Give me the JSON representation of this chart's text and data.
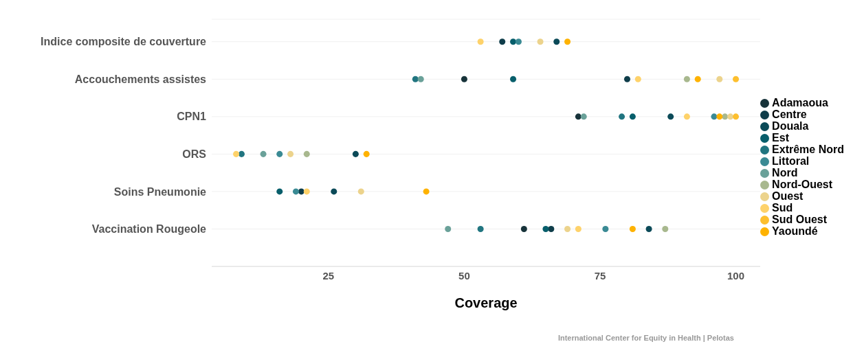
{
  "chart_data": {
    "type": "scatter",
    "xlabel": "Coverage",
    "categories": [
      "Indice composite de couverture",
      "Accouchements assistes",
      "CPN1",
      "ORS",
      "Soins Pneumonie",
      "Vaccination Rougeole"
    ],
    "orientation": "horizontal",
    "xlim": [
      3.5,
      104.5
    ],
    "xticks": [
      25,
      50,
      75,
      100
    ],
    "grid": "y",
    "legend": "right",
    "marker": "circle",
    "annotations": [
      "International Center for Equity in Health | Pelotas"
    ],
    "series": [
      {
        "name": "Adamaoua",
        "color": "#17333a",
        "values": [
          null,
          50,
          71,
          null,
          null,
          61
        ]
      },
      {
        "name": "Centre",
        "color": "#0f3d4a",
        "values": [
          57,
          80,
          null,
          null,
          20,
          66
        ]
      },
      {
        "name": "Douala",
        "color": "#0b4a58",
        "values": [
          67,
          null,
          88,
          30,
          26,
          84
        ]
      },
      {
        "name": "Est",
        "color": "#075e6b",
        "values": [
          59,
          59,
          81,
          null,
          16,
          65
        ]
      },
      {
        "name": "Extrême Nord",
        "color": "#217580",
        "values": [
          null,
          41,
          79,
          9,
          null,
          53
        ]
      },
      {
        "name": "Littoral",
        "color": "#3a8a94",
        "values": [
          60,
          null,
          96,
          16,
          19,
          76
        ]
      },
      {
        "name": "Nord",
        "color": "#6aa199",
        "values": [
          null,
          42,
          72,
          13,
          null,
          47
        ]
      },
      {
        "name": "Nord-Ouest",
        "color": "#a8b88e",
        "values": [
          null,
          91,
          98,
          21,
          null,
          87
        ]
      },
      {
        "name": "Ouest",
        "color": "#ecd38c",
        "values": [
          64,
          97,
          99,
          18,
          31,
          69
        ]
      },
      {
        "name": "Sud",
        "color": "#fed26a",
        "values": [
          53,
          82,
          91,
          8,
          21,
          71
        ]
      },
      {
        "name": "Sud Ouest",
        "color": "#fdbf2e",
        "values": [
          null,
          100,
          100,
          null,
          null,
          null
        ]
      },
      {
        "name": "Yaoundé",
        "color": "#feb200",
        "values": [
          69,
          93,
          97,
          32,
          43,
          81
        ]
      }
    ]
  }
}
